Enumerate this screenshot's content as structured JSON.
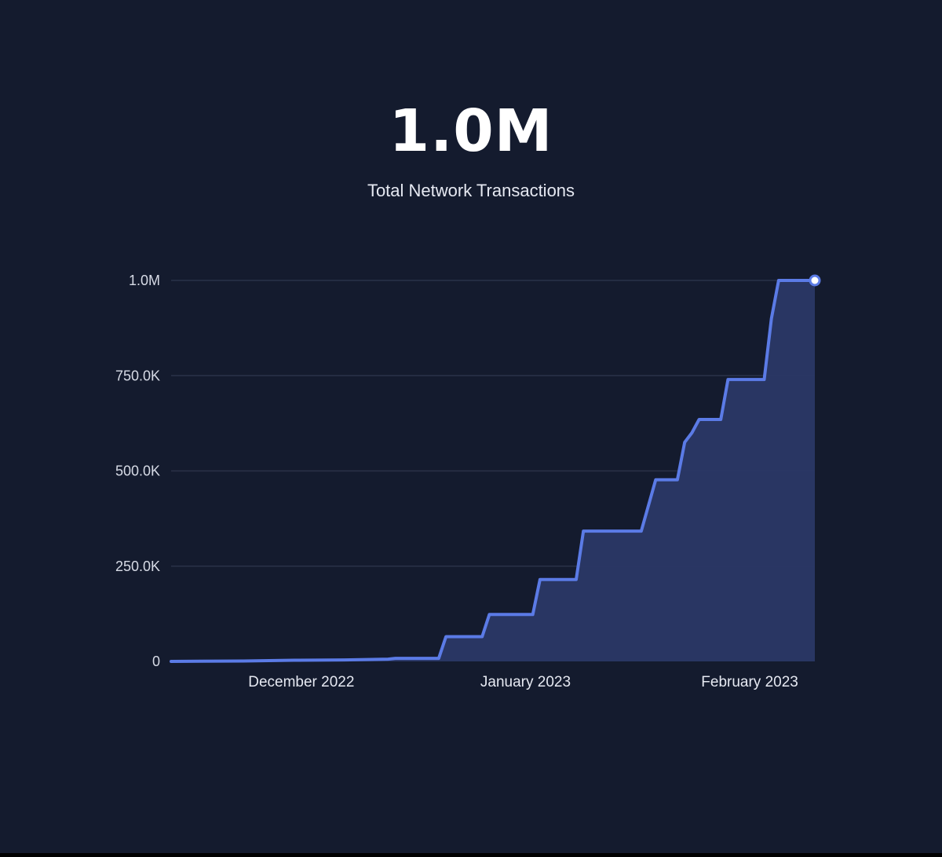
{
  "header": {
    "value": "1.0M",
    "label": "Total Network Transactions"
  },
  "colors": {
    "background": "#141b2e",
    "line": "#5b7be6",
    "area": "#2a3866",
    "grid": "#2a3248"
  },
  "chart_data": {
    "type": "area",
    "title": "",
    "xlabel": "",
    "ylabel": "",
    "x_range": [
      "2022-11-13",
      "2023-02-10"
    ],
    "ylim": [
      0,
      1000000
    ],
    "grid": true,
    "legend": "none",
    "y_ticks": [
      {
        "value": 0,
        "label": "0"
      },
      {
        "value": 250000,
        "label": "250.0K"
      },
      {
        "value": 500000,
        "label": "500.0K"
      },
      {
        "value": 750000,
        "label": "750.0K"
      },
      {
        "value": 1000000,
        "label": "1.0M"
      }
    ],
    "x_ticks": [
      {
        "date": "2022-12-01",
        "label": "December 2022"
      },
      {
        "date": "2023-01-01",
        "label": "January 2023"
      },
      {
        "date": "2023-02-01",
        "label": "February 2023"
      }
    ],
    "series": [
      {
        "points": [
          [
            "2022-11-13",
            0
          ],
          [
            "2022-11-23",
            1000
          ],
          [
            "2022-11-30",
            3000
          ],
          [
            "2022-12-07",
            4000
          ],
          [
            "2022-12-13",
            6000
          ],
          [
            "2022-12-14",
            8000
          ],
          [
            "2022-12-20",
            8000
          ],
          [
            "2022-12-21",
            65000
          ],
          [
            "2022-12-26",
            65000
          ],
          [
            "2022-12-27",
            123000
          ],
          [
            "2023-01-02",
            123000
          ],
          [
            "2023-01-03",
            215000
          ],
          [
            "2023-01-08",
            215000
          ],
          [
            "2023-01-09",
            342000
          ],
          [
            "2023-01-17",
            342000
          ],
          [
            "2023-01-19",
            477000
          ],
          [
            "2023-01-22",
            477000
          ],
          [
            "2023-01-23",
            575000
          ],
          [
            "2023-01-24",
            600000
          ],
          [
            "2023-01-25",
            635000
          ],
          [
            "2023-01-28",
            635000
          ],
          [
            "2023-01-29",
            740000
          ],
          [
            "2023-02-03",
            740000
          ],
          [
            "2023-02-04",
            900000
          ],
          [
            "2023-02-05",
            1000000
          ],
          [
            "2023-02-10",
            1000000
          ]
        ]
      }
    ]
  }
}
